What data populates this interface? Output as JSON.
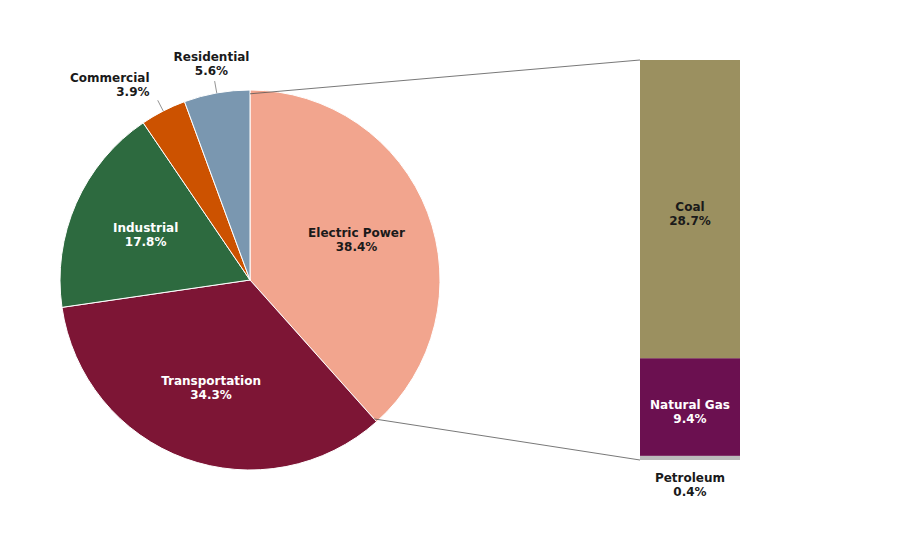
{
  "chart_data": [
    {
      "type": "pie",
      "categories": [
        "Electric Power",
        "Transportation",
        "Industrial",
        "Commercial",
        "Residential"
      ],
      "values": [
        38.4,
        34.3,
        17.8,
        3.9,
        5.6
      ],
      "value_labels": [
        "38.4%",
        "34.3%",
        "17.8%",
        "3.9%",
        "5.6%"
      ],
      "colors": [
        "#F2A58E",
        "#7D1535",
        "#2D6A3F",
        "#CC5200",
        "#7A97B0"
      ]
    },
    {
      "type": "bar",
      "stacked": true,
      "categories": [
        null
      ],
      "series": [
        {
          "name": "Petroleum",
          "color": "#BBBBBB",
          "values": [
            0.4
          ],
          "value_labels": [
            "0.4%"
          ]
        },
        {
          "name": "Natural Gas",
          "color": "#6B1050",
          "values": [
            9.4
          ],
          "value_labels": [
            "9.4%"
          ]
        },
        {
          "name": "Coal",
          "color": "#9B9060",
          "values": [
            28.7
          ],
          "value_labels": [
            "28.7%"
          ]
        }
      ],
      "ylim": [
        0,
        38.5
      ],
      "tick_labels": false,
      "color": "#555555"
    }
  ]
}
